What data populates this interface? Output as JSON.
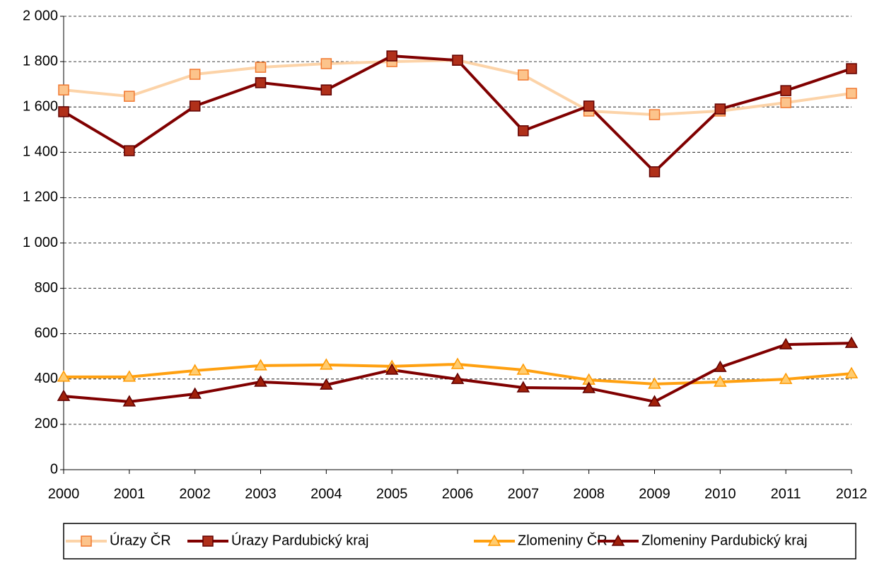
{
  "chart_data": {
    "type": "line",
    "categories": [
      "2000",
      "2001",
      "2002",
      "2003",
      "2004",
      "2005",
      "2006",
      "2007",
      "2008",
      "2009",
      "2010",
      "2011",
      "2012"
    ],
    "series": [
      {
        "name": "Úrazy ČR",
        "color": "#fcd3a8",
        "marker": "square",
        "marker_fill": "#fcc48c",
        "marker_edge": "#f07830",
        "values": [
          1675,
          1647,
          1744,
          1775,
          1791,
          1800,
          1806,
          1741,
          1582,
          1566,
          1582,
          1619,
          1660
        ]
      },
      {
        "name": "Úrazy Pardubický kraj",
        "color": "#800000",
        "marker": "square",
        "marker_fill": "#b0301a",
        "marker_edge": "#600000",
        "values": [
          1579,
          1407,
          1604,
          1707,
          1675,
          1825,
          1806,
          1495,
          1604,
          1314,
          1591,
          1672,
          1769
        ]
      },
      {
        "name": "Zlomeniny ČR",
        "color": "#ffa010",
        "marker": "triangle",
        "marker_fill": "#ffcc70",
        "marker_edge": "#ff9900",
        "values": [
          409,
          409,
          437,
          459,
          462,
          456,
          465,
          440,
          396,
          378,
          387,
          399,
          424
        ]
      },
      {
        "name": "Zlomeniny Pardubický kraj",
        "color": "#800000",
        "marker": "triangle",
        "marker_fill": "#a0200a",
        "marker_edge": "#600000",
        "values": [
          324,
          300,
          334,
          387,
          374,
          440,
          399,
          362,
          359,
          300,
          452,
          552,
          558
        ]
      }
    ],
    "ylim": [
      0,
      2000
    ],
    "yticks": [
      0,
      200,
      400,
      600,
      800,
      {
        "value": 1000,
        "label": "1 000"
      },
      {
        "value": 1200,
        "label": "1 200"
      },
      {
        "value": 1400,
        "label": "1 400"
      },
      {
        "value": 1600,
        "label": "1 600"
      },
      {
        "value": 1800,
        "label": "1 800"
      },
      {
        "value": 2000,
        "label": "2 000"
      }
    ],
    "grid": true
  }
}
